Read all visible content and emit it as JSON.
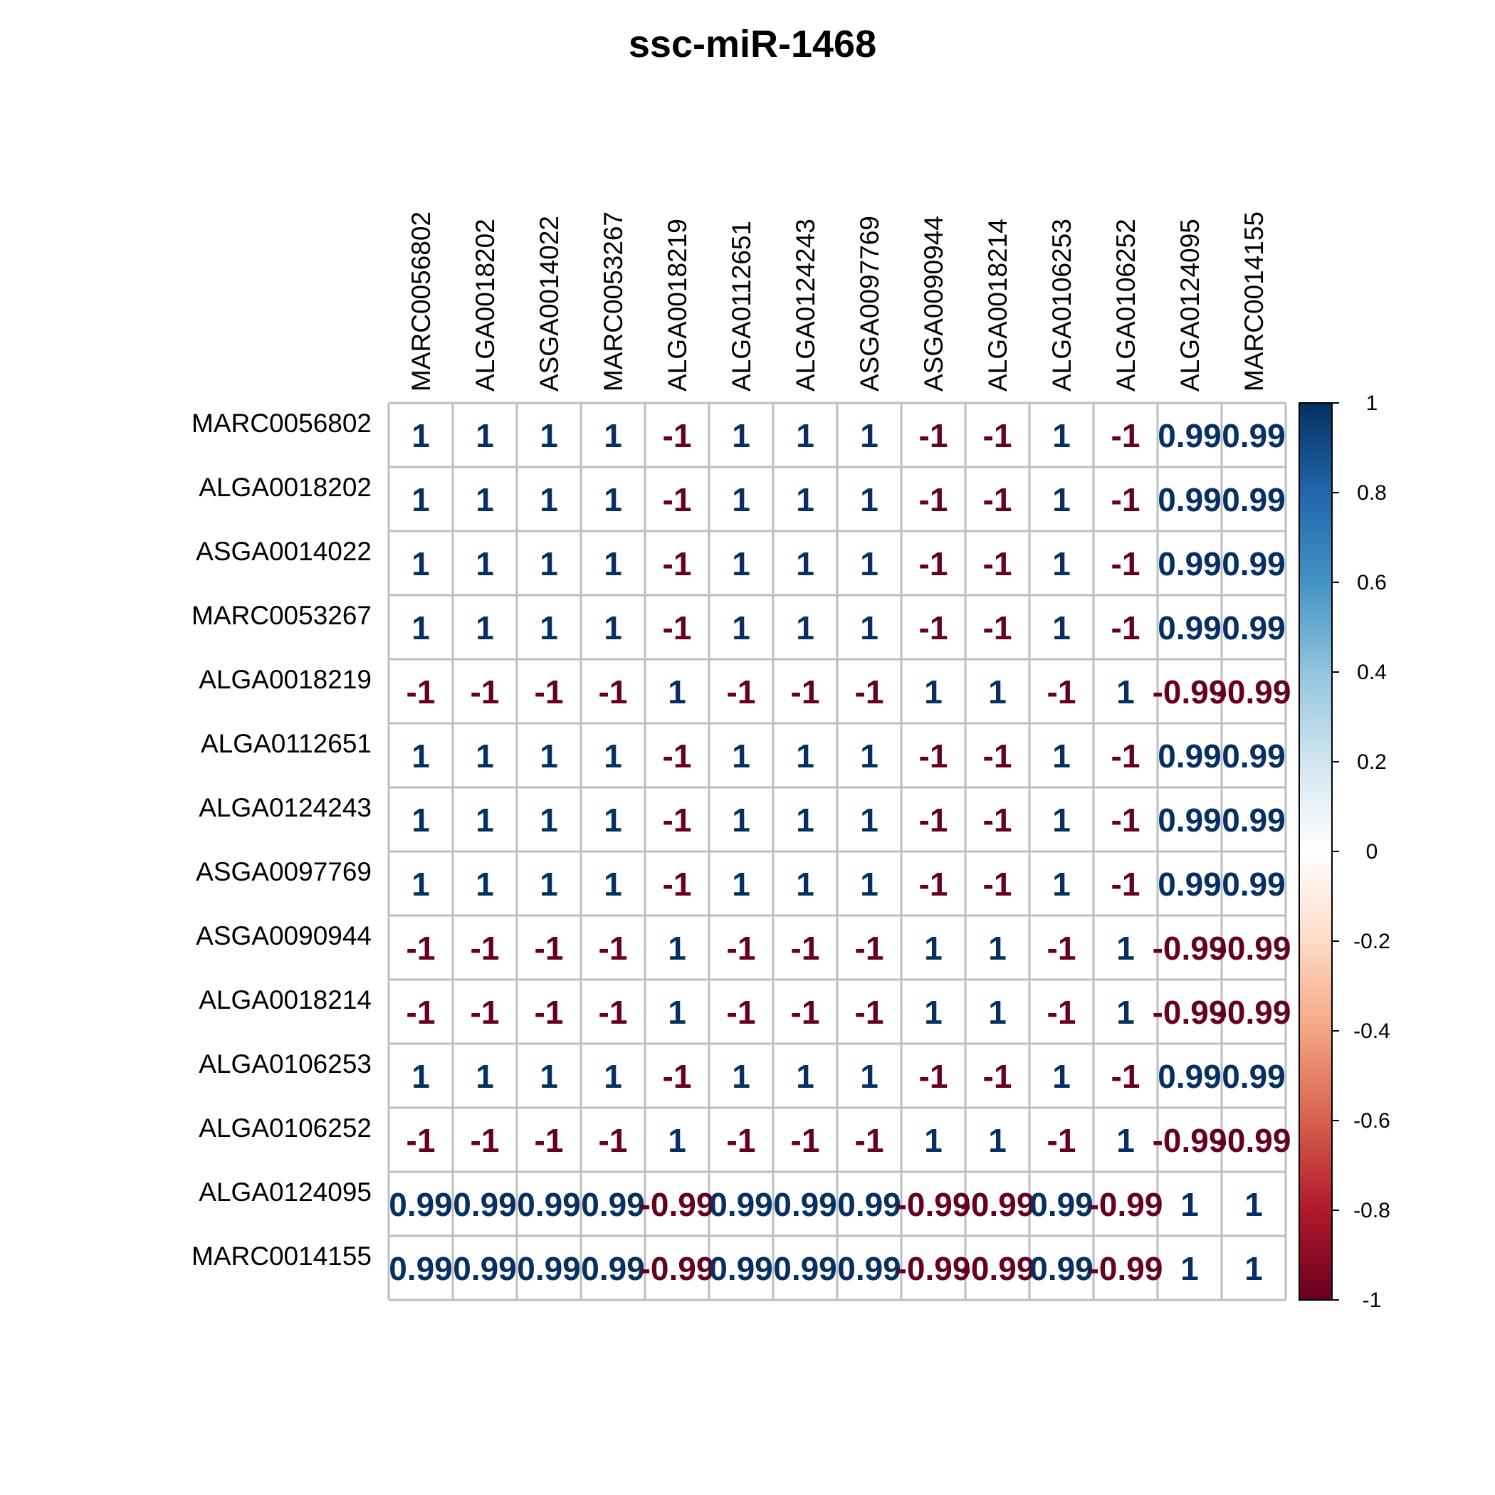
{
  "chart_data": {
    "type": "heatmap",
    "title": "ssc-miR-1468",
    "labels": [
      "MARC0056802",
      "ALGA0018202",
      "ASGA0014022",
      "MARC0053267",
      "ALGA0018219",
      "ALGA0112651",
      "ALGA0124243",
      "ASGA0097769",
      "ASGA0090944",
      "ALGA0018214",
      "ALGA0106253",
      "ALGA0106252",
      "ALGA0124095",
      "MARC0014155"
    ],
    "matrix": [
      [
        1,
        1,
        1,
        1,
        -1,
        1,
        1,
        1,
        -1,
        -1,
        1,
        -1,
        0.99,
        0.99
      ],
      [
        1,
        1,
        1,
        1,
        -1,
        1,
        1,
        1,
        -1,
        -1,
        1,
        -1,
        0.99,
        0.99
      ],
      [
        1,
        1,
        1,
        1,
        -1,
        1,
        1,
        1,
        -1,
        -1,
        1,
        -1,
        0.99,
        0.99
      ],
      [
        1,
        1,
        1,
        1,
        -1,
        1,
        1,
        1,
        -1,
        -1,
        1,
        -1,
        0.99,
        0.99
      ],
      [
        -1,
        -1,
        -1,
        -1,
        1,
        -1,
        -1,
        -1,
        1,
        1,
        -1,
        1,
        -0.99,
        -0.99
      ],
      [
        1,
        1,
        1,
        1,
        -1,
        1,
        1,
        1,
        -1,
        -1,
        1,
        -1,
        0.99,
        0.99
      ],
      [
        1,
        1,
        1,
        1,
        -1,
        1,
        1,
        1,
        -1,
        -1,
        1,
        -1,
        0.99,
        0.99
      ],
      [
        1,
        1,
        1,
        1,
        -1,
        1,
        1,
        1,
        -1,
        -1,
        1,
        -1,
        0.99,
        0.99
      ],
      [
        -1,
        -1,
        -1,
        -1,
        1,
        -1,
        -1,
        -1,
        1,
        1,
        -1,
        1,
        -0.99,
        -0.99
      ],
      [
        -1,
        -1,
        -1,
        -1,
        1,
        -1,
        -1,
        -1,
        1,
        1,
        -1,
        1,
        -0.99,
        -0.99
      ],
      [
        1,
        1,
        1,
        1,
        -1,
        1,
        1,
        1,
        -1,
        -1,
        1,
        -1,
        0.99,
        0.99
      ],
      [
        -1,
        -1,
        -1,
        -1,
        1,
        -1,
        -1,
        -1,
        1,
        1,
        -1,
        1,
        -0.99,
        -0.99
      ],
      [
        0.99,
        0.99,
        0.99,
        0.99,
        -0.99,
        0.99,
        0.99,
        0.99,
        -0.99,
        -0.99,
        0.99,
        -0.99,
        1,
        1
      ],
      [
        0.99,
        0.99,
        0.99,
        0.99,
        -0.99,
        0.99,
        0.99,
        0.99,
        -0.99,
        -0.99,
        0.99,
        -0.99,
        1,
        1
      ]
    ],
    "legend": {
      "ticks": [
        "1",
        "0.8",
        "0.6",
        "0.4",
        "0.2",
        "0",
        "-0.2",
        "-0.4",
        "-0.6",
        "-0.8",
        "-1"
      ],
      "range": [
        -1,
        1
      ],
      "colors": [
        "#67001F",
        "#B2182B",
        "#D6604D",
        "#F4A582",
        "#FDDBC7",
        "#FFFFFF",
        "#D1E5F0",
        "#92C5DE",
        "#4393C3",
        "#2166AC",
        "#053061"
      ]
    },
    "colors": {
      "positive_text": "#053061",
      "negative_text": "#67001F",
      "grid": "#BEBEBE"
    }
  }
}
